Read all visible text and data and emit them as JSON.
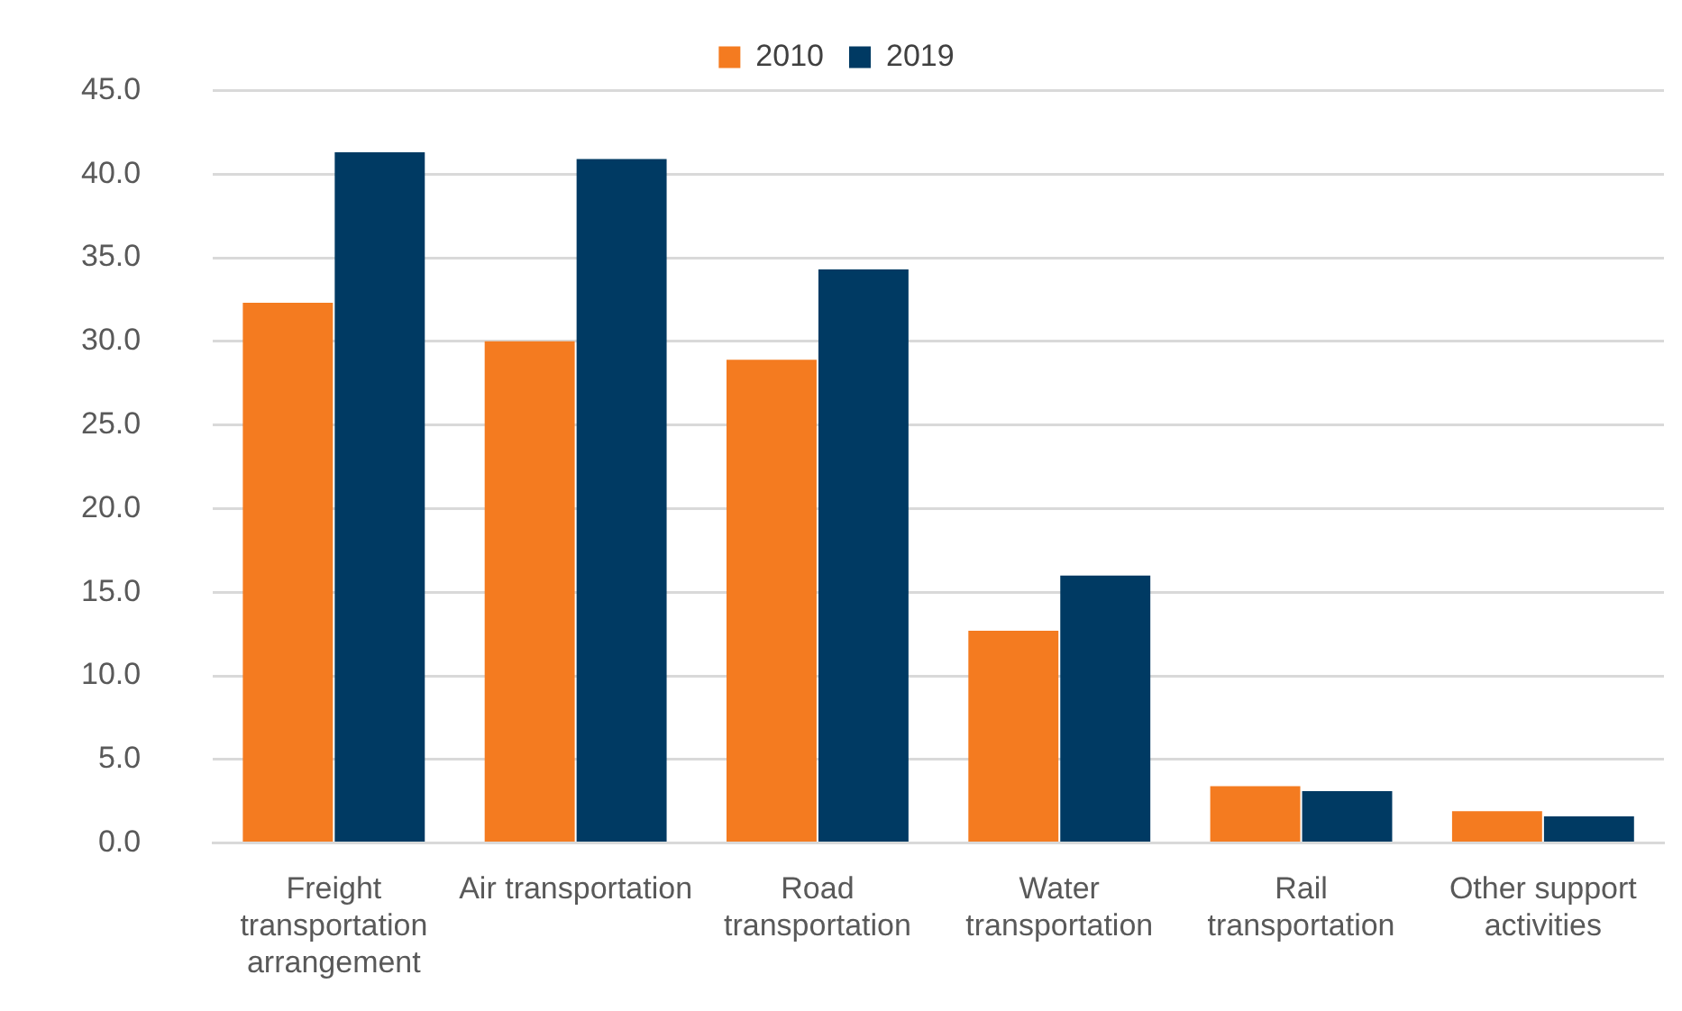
{
  "chart_data": {
    "type": "bar",
    "categories": [
      "Freight transportation arrangement",
      "Air transportation",
      "Road transportation",
      "Water transportation",
      "Rail transportation",
      "Other support activities"
    ],
    "series": [
      {
        "name": "2010",
        "color": "#f47b20",
        "values": [
          32.3,
          30.0,
          28.9,
          12.7,
          3.4,
          1.9
        ]
      },
      {
        "name": "2019",
        "color": "#003a63",
        "values": [
          41.3,
          40.9,
          34.3,
          16.0,
          3.1,
          1.6
        ]
      }
    ],
    "ylim": [
      0,
      45
    ],
    "yticks": [
      {
        "value": 0,
        "label": "0.0"
      },
      {
        "value": 5,
        "label": "5.0"
      },
      {
        "value": 10,
        "label": "10.0"
      },
      {
        "value": 15,
        "label": "15.0"
      },
      {
        "value": 20,
        "label": "20.0"
      },
      {
        "value": 25,
        "label": "25.0"
      },
      {
        "value": 30,
        "label": "30.0"
      },
      {
        "value": 35,
        "label": "35.0"
      },
      {
        "value": 40,
        "label": "40.0"
      },
      {
        "value": 45,
        "label": "45.0"
      }
    ],
    "grid": "y",
    "legend": "top"
  }
}
